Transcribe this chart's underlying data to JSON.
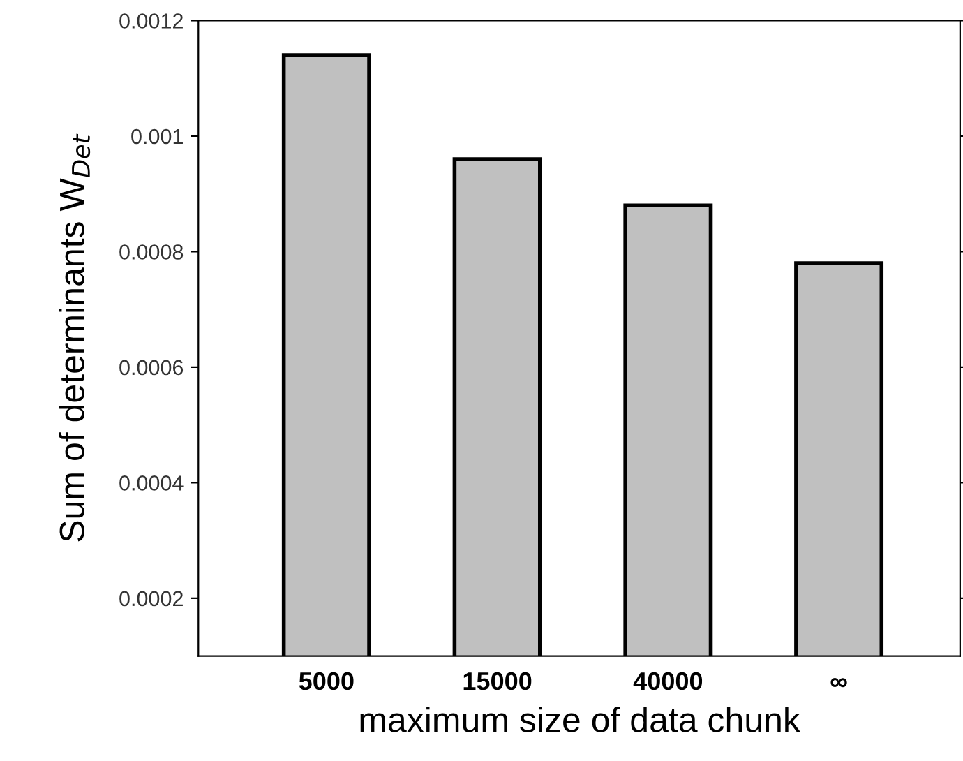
{
  "chart_data": {
    "type": "bar",
    "xlabel": "maximum size of data chunk",
    "ylabel": "Sum of determinants W$_{Det}$",
    "categories": [
      "5000",
      "15000",
      "40000",
      "∞"
    ],
    "values": [
      0.00114,
      0.00096,
      0.00088,
      0.00078
    ],
    "color": "#c0c0c0",
    "ylim": [
      0.0001,
      0.0012
    ],
    "yticks": [
      0.0002,
      0.0004,
      0.0006,
      0.0008,
      0.001,
      0.0012
    ],
    "grid": false,
    "legend": false
  }
}
